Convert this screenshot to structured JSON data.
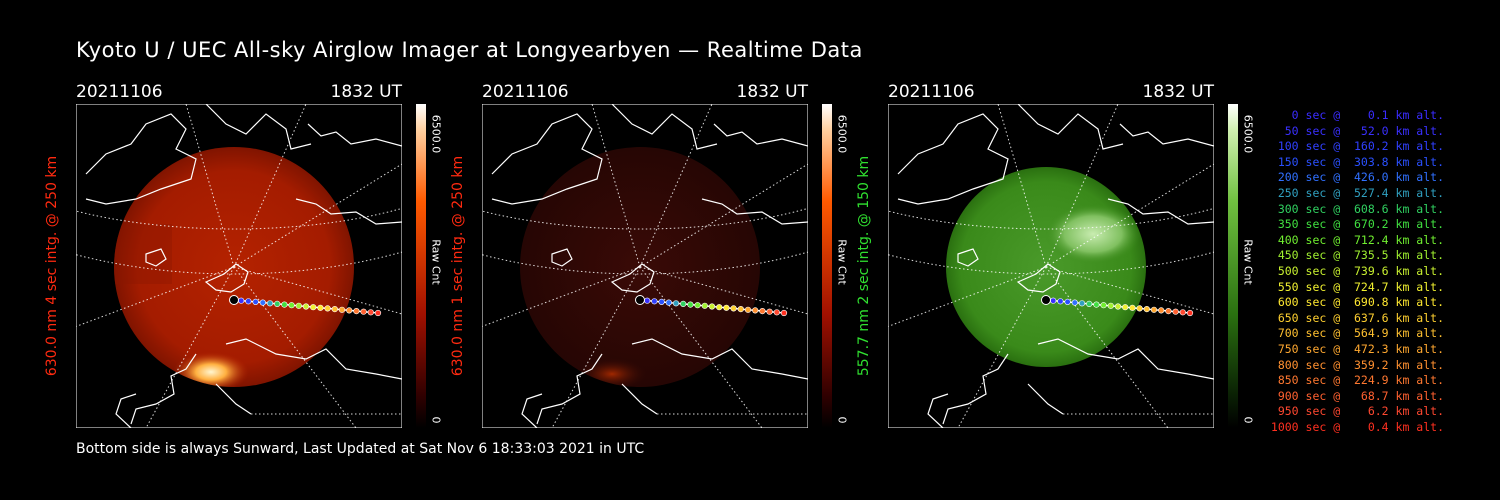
{
  "title": "Kyoto U / UEC All-sky Airglow Imager at Longyearbyen — Realtime Data",
  "footer": "Bottom side is always Sunward, Last Updated at Sat Nov  6 18:33:03 2021 in UTC",
  "colors": {
    "red_label": "#ff2a10",
    "green_label": "#30e030",
    "panel1_disk": "#b02000",
    "panel2_disk": "#300806",
    "panel3_disk": "#3a8a1a"
  },
  "panels": [
    {
      "date": "20211106",
      "time": "1832 UT",
      "ylabel": "630.0 nm 4 sec intg. @ 250 km",
      "cbar_max": "6500.0",
      "cbar_unit": "Raw Cnt",
      "cbar_min": "0",
      "cbar_color": "#ff4000"
    },
    {
      "date": "20211106",
      "time": "1832 UT",
      "ylabel": "630.0 nm 1 sec intg. @ 250 km",
      "cbar_max": "6500.0",
      "cbar_unit": "Raw Cnt",
      "cbar_min": "0",
      "cbar_color": "#ff4000"
    },
    {
      "date": "20211106",
      "time": "1832 UT",
      "ylabel": "557.7 nm 2 sec intg. @ 150 km",
      "cbar_max": "6500.0",
      "cbar_unit": "Raw Cnt",
      "cbar_min": "0",
      "cbar_color": "#30c020"
    }
  ],
  "legend": [
    {
      "text": "   0 sec @    0.1 km alt.",
      "color": "#3a2cff"
    },
    {
      "text": "  50 sec @   52.0 km alt.",
      "color": "#3a30ff"
    },
    {
      "text": " 100 sec @  160.2 km alt.",
      "color": "#3040ff"
    },
    {
      "text": " 150 sec @  303.8 km alt.",
      "color": "#2a50ff"
    },
    {
      "text": " 200 sec @  426.0 km alt.",
      "color": "#3070ff"
    },
    {
      "text": " 250 sec @  527.4 km alt.",
      "color": "#30a0c0"
    },
    {
      "text": " 300 sec @  608.6 km alt.",
      "color": "#30d060"
    },
    {
      "text": " 350 sec @  670.2 km alt.",
      "color": "#40e040"
    },
    {
      "text": " 400 sec @  712.4 km alt.",
      "color": "#70ee30"
    },
    {
      "text": " 450 sec @  735.5 km alt.",
      "color": "#a0f030"
    },
    {
      "text": " 500 sec @  739.6 km alt.",
      "color": "#c8f030"
    },
    {
      "text": " 550 sec @  724.7 km alt.",
      "color": "#f0f030"
    },
    {
      "text": " 600 sec @  690.8 km alt.",
      "color": "#ffe830"
    },
    {
      "text": " 650 sec @  637.6 km alt.",
      "color": "#ffd030"
    },
    {
      "text": " 700 sec @  564.9 km alt.",
      "color": "#ffc030"
    },
    {
      "text": " 750 sec @  472.3 km alt.",
      "color": "#ffa830"
    },
    {
      "text": " 800 sec @  359.2 km alt.",
      "color": "#ff9030"
    },
    {
      "text": " 850 sec @  224.9 km alt.",
      "color": "#ff7830"
    },
    {
      "text": " 900 sec @   68.7 km alt.",
      "color": "#ff6030"
    },
    {
      "text": " 950 sec @    6.2 km alt.",
      "color": "#ff4830"
    },
    {
      "text": "1000 sec @    0.4 km alt.",
      "color": "#ff3020"
    }
  ]
}
